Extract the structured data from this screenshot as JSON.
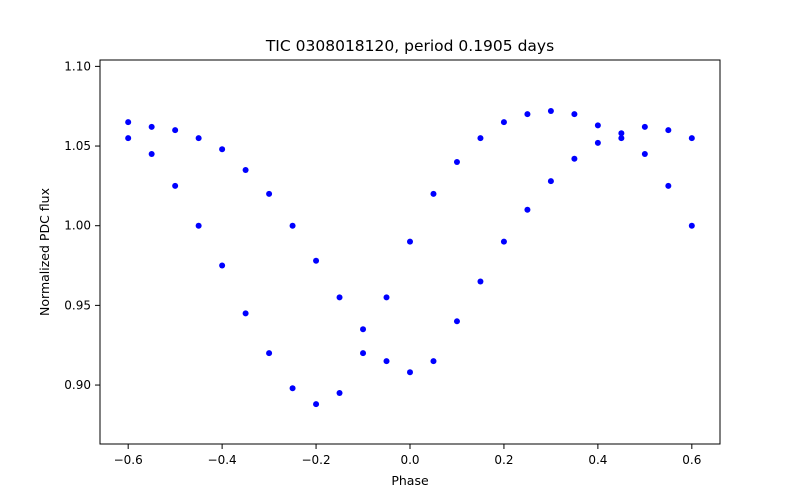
{
  "chart_data": {
    "type": "scatter",
    "title": "TIC 0308018120, period 0.1905 days",
    "xlabel": "Phase",
    "ylabel": "Normalized PDC flux",
    "xlim": [
      -0.66,
      0.66
    ],
    "ylim": [
      0.863,
      1.104
    ],
    "xticks": [
      -0.6,
      -0.4,
      -0.2,
      0.0,
      0.2,
      0.4,
      0.6
    ],
    "xtick_labels": [
      "−0.6",
      "−0.4",
      "−0.2",
      "0.0",
      "0.2",
      "0.4",
      "0.6"
    ],
    "yticks": [
      0.9,
      0.95,
      1.0,
      1.05,
      1.1
    ],
    "ytick_labels": [
      "0.90",
      "0.95",
      "1.00",
      "1.05",
      "1.10"
    ],
    "grid": false,
    "legend": "none",
    "marker_color": "#0000ff",
    "series": [
      {
        "points": [
          [
            -0.6,
            1.055
          ],
          [
            -0.55,
            1.045
          ],
          [
            -0.5,
            1.025
          ],
          [
            -0.45,
            1.0
          ],
          [
            -0.4,
            0.975
          ],
          [
            -0.35,
            0.945
          ],
          [
            -0.3,
            0.92
          ],
          [
            -0.25,
            0.898
          ],
          [
            -0.2,
            0.888
          ],
          [
            -0.15,
            0.895
          ],
          [
            -0.1,
            0.92
          ],
          [
            -0.05,
            0.955
          ],
          [
            0.0,
            0.99
          ],
          [
            0.05,
            1.02
          ],
          [
            0.1,
            1.04
          ],
          [
            0.15,
            1.055
          ],
          [
            0.2,
            1.065
          ],
          [
            0.25,
            1.07
          ],
          [
            0.3,
            1.072
          ],
          [
            0.35,
            1.07
          ],
          [
            0.4,
            1.063
          ],
          [
            0.45,
            1.055
          ],
          [
            0.5,
            1.045
          ],
          [
            0.55,
            1.025
          ],
          [
            0.6,
            1.0
          ]
        ]
      },
      {
        "points": [
          [
            -0.6,
            1.065
          ],
          [
            -0.55,
            1.062
          ],
          [
            -0.5,
            1.06
          ],
          [
            -0.45,
            1.055
          ],
          [
            -0.4,
            1.048
          ],
          [
            -0.35,
            1.035
          ],
          [
            -0.3,
            1.02
          ],
          [
            -0.25,
            1.0
          ],
          [
            -0.2,
            0.978
          ],
          [
            -0.15,
            0.955
          ],
          [
            -0.1,
            0.935
          ],
          [
            -0.05,
            0.915
          ],
          [
            0.0,
            0.908
          ],
          [
            0.05,
            0.915
          ],
          [
            0.1,
            0.94
          ],
          [
            0.15,
            0.965
          ],
          [
            0.2,
            0.99
          ],
          [
            0.25,
            1.01
          ],
          [
            0.3,
            1.028
          ],
          [
            0.35,
            1.042
          ],
          [
            0.4,
            1.052
          ],
          [
            0.45,
            1.058
          ],
          [
            0.5,
            1.062
          ],
          [
            0.55,
            1.06
          ],
          [
            0.6,
            1.055
          ]
        ]
      }
    ]
  }
}
